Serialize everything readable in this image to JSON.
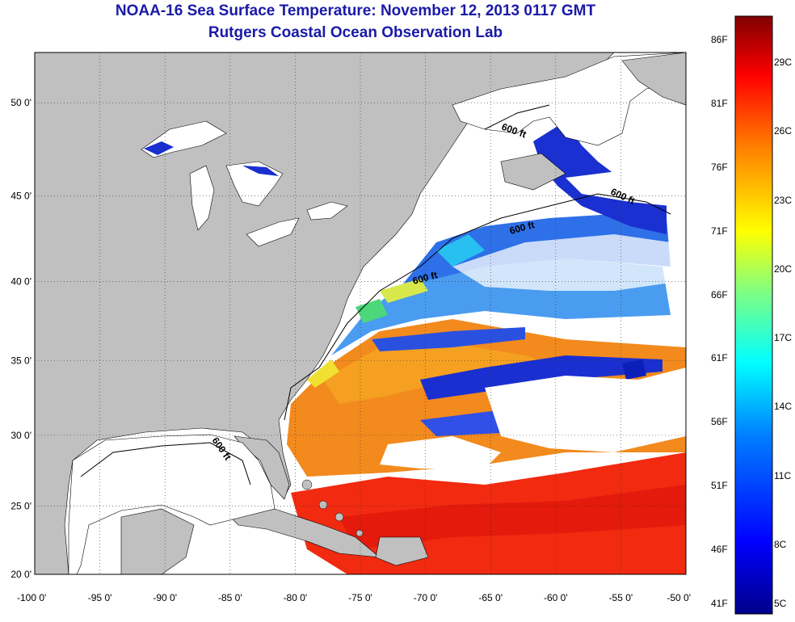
{
  "title": "NOAA-16 Sea Surface Temperature:  November 12, 2013 0117 GMT",
  "subtitle": "Rutgers Coastal Ocean Observation Lab",
  "lat_ticks": [
    {
      "label": "50 0'",
      "value": 50
    },
    {
      "label": "45 0'",
      "value": 45
    },
    {
      "label": "40 0'",
      "value": 40
    },
    {
      "label": "35 0'",
      "value": 35
    },
    {
      "label": "30 0'",
      "value": 30
    },
    {
      "label": "25 0'",
      "value": 25
    },
    {
      "label": "20 0'",
      "value": 20
    }
  ],
  "lon_ticks": [
    {
      "label": "-100 0'",
      "value": -100
    },
    {
      "label": "-95 0'",
      "value": -95
    },
    {
      "label": "-90 0'",
      "value": -90
    },
    {
      "label": "-85 0'",
      "value": -85
    },
    {
      "label": "-80 0'",
      "value": -80
    },
    {
      "label": "-75 0'",
      "value": -75
    },
    {
      "label": "-70 0'",
      "value": -70
    },
    {
      "label": "-65 0'",
      "value": -65
    },
    {
      "label": "-60 0'",
      "value": -60
    },
    {
      "label": "-55 0'",
      "value": -55
    },
    {
      "label": "-50 0'",
      "value": -50
    }
  ],
  "isobath_labels": [
    "600 ft",
    "600 ft",
    "600 ft",
    "600 ft",
    "600 ft"
  ],
  "colorbar": {
    "fahrenheit": [
      "86F",
      "81F",
      "76F",
      "71F",
      "66F",
      "61F",
      "56F",
      "51F",
      "46F",
      "41F"
    ],
    "celsius": [
      "29C",
      "26C",
      "23C",
      "20C",
      "17C",
      "14C",
      "11C",
      "8C",
      "5C"
    ],
    "colors": [
      "#00008b",
      "#0000ff",
      "#0080ff",
      "#00ffff",
      "#80ff80",
      "#ffff00",
      "#ff8000",
      "#ff0000",
      "#800000"
    ]
  },
  "colors": {
    "land": "#c0c0c0",
    "clouds": "#ffffff",
    "title": "#1a1aa8"
  }
}
